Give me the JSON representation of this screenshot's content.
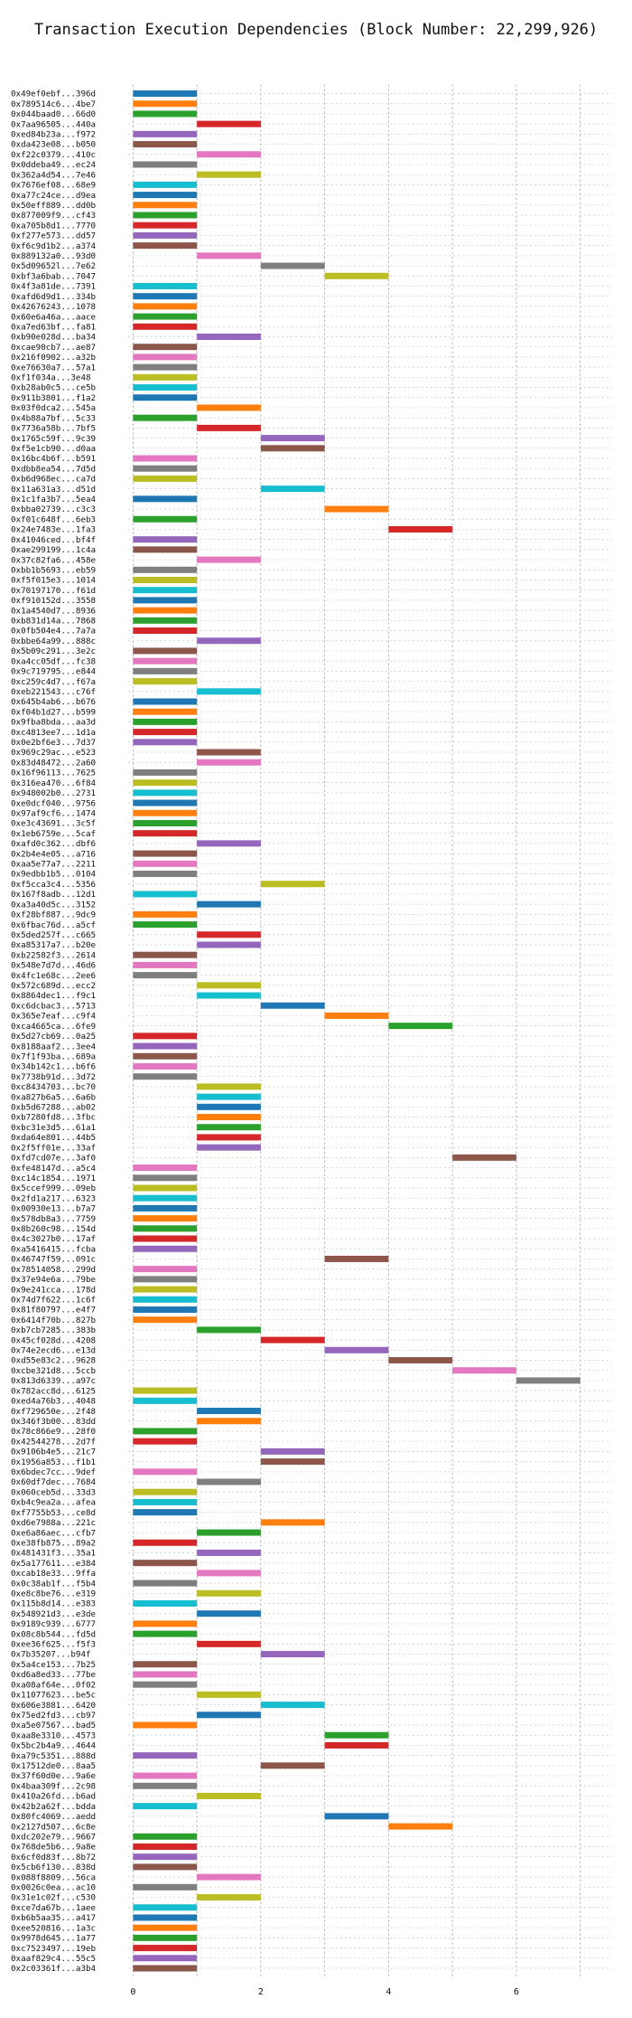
{
  "chart_data": {
    "type": "bar",
    "orientation": "horizontal",
    "title": "Transaction Execution Dependencies (Block Number: 22,299,926)",
    "xlabel": "",
    "ylabel": "",
    "xlim": [
      -0.5,
      7.5
    ],
    "xticks": [
      0,
      2,
      4,
      6
    ],
    "grid": true,
    "palette": [
      "#1f77b4",
      "#ff7f0e",
      "#2ca02c",
      "#d62728",
      "#9467bd",
      "#8c564b",
      "#e377c2",
      "#7f7f7f",
      "#bcbd22",
      "#17becf"
    ],
    "transactions": [
      {
        "label": "0x49ef0ebf...396d",
        "start": 0,
        "end": 1
      },
      {
        "label": "0x789514c6...4be7",
        "start": 0,
        "end": 1
      },
      {
        "label": "0x044baad0...66d0",
        "start": 0,
        "end": 1
      },
      {
        "label": "0x7aa96505...440a",
        "start": 1,
        "end": 2
      },
      {
        "label": "0xed84b23a...f972",
        "start": 0,
        "end": 1
      },
      {
        "label": "0xda423e08...b050",
        "start": 0,
        "end": 1
      },
      {
        "label": "0xf22c0379...410c",
        "start": 1,
        "end": 2
      },
      {
        "label": "0x0ddeba49...ec24",
        "start": 0,
        "end": 1
      },
      {
        "label": "0x362a4d54...7e46",
        "start": 1,
        "end": 2
      },
      {
        "label": "0x7676ef08...68e9",
        "start": 0,
        "end": 1
      },
      {
        "label": "0xa77c24ce...d9ea",
        "start": 0,
        "end": 1
      },
      {
        "label": "0x50eff889...dd0b",
        "start": 0,
        "end": 1
      },
      {
        "label": "0x877009f9...cf43",
        "start": 0,
        "end": 1
      },
      {
        "label": "0xa705b8d1...7770",
        "start": 0,
        "end": 1
      },
      {
        "label": "0xf277e573...dd57",
        "start": 0,
        "end": 1
      },
      {
        "label": "0xf6c9d1b2...a374",
        "start": 0,
        "end": 1
      },
      {
        "label": "0x889132a0...93d0",
        "start": 1,
        "end": 2
      },
      {
        "label": "0x5d09652l...7e62",
        "start": 2,
        "end": 3
      },
      {
        "label": "0xbf3a6bab...7047",
        "start": 3,
        "end": 4
      },
      {
        "label": "0x4f3a81de...7391",
        "start": 0,
        "end": 1
      },
      {
        "label": "0xafd6d9d1...334b",
        "start": 0,
        "end": 1
      },
      {
        "label": "0x42676243...1078",
        "start": 0,
        "end": 1
      },
      {
        "label": "0x60e6a46a...aace",
        "start": 0,
        "end": 1
      },
      {
        "label": "0xa7ed63bf...fa81",
        "start": 0,
        "end": 1
      },
      {
        "label": "0xb90e028d...ba34",
        "start": 1,
        "end": 2
      },
      {
        "label": "0xcae90cb7...ae87",
        "start": 0,
        "end": 1
      },
      {
        "label": "0x216f0902...a32b",
        "start": 0,
        "end": 1
      },
      {
        "label": "0xe76630a7...57a1",
        "start": 0,
        "end": 1
      },
      {
        "label": "0xf1f034a...3e48",
        "start": 0,
        "end": 1
      },
      {
        "label": "0xb28ab0c5...ce5b",
        "start": 0,
        "end": 1
      },
      {
        "label": "0x911b3801...f1a2",
        "start": 0,
        "end": 1
      },
      {
        "label": "0x03f0dca2...545a",
        "start": 1,
        "end": 2
      },
      {
        "label": "0x4b88a7bf...5c33",
        "start": 0,
        "end": 1
      },
      {
        "label": "0x7736a58b...7bf5",
        "start": 1,
        "end": 2
      },
      {
        "label": "0x1765c59f...9c39",
        "start": 2,
        "end": 3
      },
      {
        "label": "0xf5e1cb90...d0aa",
        "start": 2,
        "end": 3
      },
      {
        "label": "0x16bc4b6f...b591",
        "start": 0,
        "end": 1
      },
      {
        "label": "0xdbb8ea54...7d5d",
        "start": 0,
        "end": 1
      },
      {
        "label": "0xb6d968ec...ca7d",
        "start": 0,
        "end": 1
      },
      {
        "label": "0x11a631a3...d51d",
        "start": 2,
        "end": 3
      },
      {
        "label": "0x1c1fa3b7...5ea4",
        "start": 0,
        "end": 1
      },
      {
        "label": "0xbba02739...c3c3",
        "start": 3,
        "end": 4
      },
      {
        "label": "0xf01c648f...6eb3",
        "start": 0,
        "end": 1
      },
      {
        "label": "0x24e7483e...1fa3",
        "start": 4,
        "end": 5
      },
      {
        "label": "0x41046ced...bf4f",
        "start": 0,
        "end": 1
      },
      {
        "label": "0xae299199...1c4a",
        "start": 0,
        "end": 1
      },
      {
        "label": "0x37c82fa6...458e",
        "start": 1,
        "end": 2
      },
      {
        "label": "0xbb1b5693...eb59",
        "start": 0,
        "end": 1
      },
      {
        "label": "0xf5f015e3...1014",
        "start": 0,
        "end": 1
      },
      {
        "label": "0x70197170...f61d",
        "start": 0,
        "end": 1
      },
      {
        "label": "0xf910152d...3558",
        "start": 0,
        "end": 1
      },
      {
        "label": "0x1a4540d7...8936",
        "start": 0,
        "end": 1
      },
      {
        "label": "0xb831d14a...7868",
        "start": 0,
        "end": 1
      },
      {
        "label": "0x0fb504e4...7a7a",
        "start": 0,
        "end": 1
      },
      {
        "label": "0xbbe64a99...888c",
        "start": 1,
        "end": 2
      },
      {
        "label": "0x5b09c291...3e2c",
        "start": 0,
        "end": 1
      },
      {
        "label": "0xa4cc05df...fc38",
        "start": 0,
        "end": 1
      },
      {
        "label": "0x9c719795...e844",
        "start": 0,
        "end": 1
      },
      {
        "label": "0xc259c4d7...f67a",
        "start": 0,
        "end": 1
      },
      {
        "label": "0xeb221543...c76f",
        "start": 1,
        "end": 2
      },
      {
        "label": "0x645b4ab6...b676",
        "start": 0,
        "end": 1
      },
      {
        "label": "0xf04b1d27...b599",
        "start": 0,
        "end": 1
      },
      {
        "label": "0x9fba8bda...aa3d",
        "start": 0,
        "end": 1
      },
      {
        "label": "0xc4813ee7...1d1a",
        "start": 0,
        "end": 1
      },
      {
        "label": "0x0e2bf6e3...7d37",
        "start": 0,
        "end": 1
      },
      {
        "label": "0x969c29ac...e523",
        "start": 1,
        "end": 2
      },
      {
        "label": "0x83d48472...2a60",
        "start": 1,
        "end": 2
      },
      {
        "label": "0x16f96113...7625",
        "start": 0,
        "end": 1
      },
      {
        "label": "0x316ea470...6f84",
        "start": 0,
        "end": 1
      },
      {
        "label": "0x948002b0...2731",
        "start": 0,
        "end": 1
      },
      {
        "label": "0xe0dcf040...9756",
        "start": 0,
        "end": 1
      },
      {
        "label": "0x97af9cf6...1474",
        "start": 0,
        "end": 1
      },
      {
        "label": "0xe3c43691...3c5f",
        "start": 0,
        "end": 1
      },
      {
        "label": "0x1eb6759e...5caf",
        "start": 0,
        "end": 1
      },
      {
        "label": "0xafd0c362...dbf6",
        "start": 1,
        "end": 2
      },
      {
        "label": "0x2b4e4e05...a716",
        "start": 0,
        "end": 1
      },
      {
        "label": "0xaa5e77a7...2211",
        "start": 0,
        "end": 1
      },
      {
        "label": "0x9edbb1b5...0104",
        "start": 0,
        "end": 1
      },
      {
        "label": "0xf5cca3c4...5356",
        "start": 2,
        "end": 3
      },
      {
        "label": "0x167f8adb...12d1",
        "start": 0,
        "end": 1
      },
      {
        "label": "0xa3a40d5c...3152",
        "start": 1,
        "end": 2
      },
      {
        "label": "0xf28bf887...9dc9",
        "start": 0,
        "end": 1
      },
      {
        "label": "0x6fbac76d...a5cf",
        "start": 0,
        "end": 1
      },
      {
        "label": "0x5ded257f...c665",
        "start": 1,
        "end": 2
      },
      {
        "label": "0xa85317a7...b20e",
        "start": 1,
        "end": 2
      },
      {
        "label": "0xb22582f3...2614",
        "start": 0,
        "end": 1
      },
      {
        "label": "0x548e7d7d...46d6",
        "start": 0,
        "end": 1
      },
      {
        "label": "0x4fc1e68c...2ee6",
        "start": 0,
        "end": 1
      },
      {
        "label": "0x572c689d...ecc2",
        "start": 1,
        "end": 2
      },
      {
        "label": "0x8864dec1...f9c1",
        "start": 1,
        "end": 2
      },
      {
        "label": "0xc6dcbac3...5713",
        "start": 2,
        "end": 3
      },
      {
        "label": "0x365e7eaf...c9f4",
        "start": 3,
        "end": 4
      },
      {
        "label": "0xca4665ca...6fe9",
        "start": 4,
        "end": 5
      },
      {
        "label": "0x5d27cb69...0a25",
        "start": 0,
        "end": 1
      },
      {
        "label": "0x8188aaf2...3ee4",
        "start": 0,
        "end": 1
      },
      {
        "label": "0x7f1f93ba...689a",
        "start": 0,
        "end": 1
      },
      {
        "label": "0x34b142c1...b6f6",
        "start": 0,
        "end": 1
      },
      {
        "label": "0x7738b91d...3d72",
        "start": 0,
        "end": 1
      },
      {
        "label": "0xc8434703...bc70",
        "start": 1,
        "end": 2
      },
      {
        "label": "0xa827b6a5...6a6b",
        "start": 1,
        "end": 2
      },
      {
        "label": "0xb5d67288...ab02",
        "start": 1,
        "end": 2
      },
      {
        "label": "0xb7280fd8...3fbc",
        "start": 1,
        "end": 2
      },
      {
        "label": "0xbc31e3d5...61a1",
        "start": 1,
        "end": 2
      },
      {
        "label": "0xda64e801...44b5",
        "start": 1,
        "end": 2
      },
      {
        "label": "0x2f5ff01e...33af",
        "start": 1,
        "end": 2
      },
      {
        "label": "0xfd7cd07e...3af0",
        "start": 5,
        "end": 6
      },
      {
        "label": "0xfe48147d...a5c4",
        "start": 0,
        "end": 1
      },
      {
        "label": "0xc14c1854...1971",
        "start": 0,
        "end": 1
      },
      {
        "label": "0x5ccef999...09eb",
        "start": 0,
        "end": 1
      },
      {
        "label": "0x2fd1a217...6323",
        "start": 0,
        "end": 1
      },
      {
        "label": "0x00930e13...b7a7",
        "start": 0,
        "end": 1
      },
      {
        "label": "0x578db8a3...7759",
        "start": 0,
        "end": 1
      },
      {
        "label": "0x8b260c98...154d",
        "start": 0,
        "end": 1
      },
      {
        "label": "0x4c3027b0...17af",
        "start": 0,
        "end": 1
      },
      {
        "label": "0xa5416415...fcba",
        "start": 0,
        "end": 1
      },
      {
        "label": "0x46747f59...091c",
        "start": 3,
        "end": 4
      },
      {
        "label": "0x78514058...299d",
        "start": 0,
        "end": 1
      },
      {
        "label": "0x37e94e6a...79be",
        "start": 0,
        "end": 1
      },
      {
        "label": "0x9e241cca...178d",
        "start": 0,
        "end": 1
      },
      {
        "label": "0x74d7f622...1c6f",
        "start": 0,
        "end": 1
      },
      {
        "label": "0x81f80797...e4f7",
        "start": 0,
        "end": 1
      },
      {
        "label": "0x6414f70b...827b",
        "start": 0,
        "end": 1
      },
      {
        "label": "0xb7cb7285...383b",
        "start": 1,
        "end": 2
      },
      {
        "label": "0x45cf028d...4208",
        "start": 2,
        "end": 3
      },
      {
        "label": "0x74e2ecd6...e13d",
        "start": 3,
        "end": 4
      },
      {
        "label": "0xd55e83c2...9628",
        "start": 4,
        "end": 5
      },
      {
        "label": "0xcbe321d8...5ccb",
        "start": 5,
        "end": 6
      },
      {
        "label": "0x813d6339...a97c",
        "start": 6,
        "end": 7
      },
      {
        "label": "0x782acc8d...6125",
        "start": 0,
        "end": 1
      },
      {
        "label": "0xed4a76b3...4048",
        "start": 0,
        "end": 1
      },
      {
        "label": "0xf729650e...2f48",
        "start": 1,
        "end": 2
      },
      {
        "label": "0x346f3b00...83dd",
        "start": 1,
        "end": 2
      },
      {
        "label": "0x78c866e9...28f0",
        "start": 0,
        "end": 1
      },
      {
        "label": "0x42544278...2d7f",
        "start": 0,
        "end": 1
      },
      {
        "label": "0x9106b4e5...21c7",
        "start": 2,
        "end": 3
      },
      {
        "label": "0x1956a853...f1b1",
        "start": 2,
        "end": 3
      },
      {
        "label": "0x6bdec7cc...9def",
        "start": 0,
        "end": 1
      },
      {
        "label": "0x60df7dec...7684",
        "start": 1,
        "end": 2
      },
      {
        "label": "0x060ceb5d...33d3",
        "start": 0,
        "end": 1
      },
      {
        "label": "0xb4c9ea2a...afea",
        "start": 0,
        "end": 1
      },
      {
        "label": "0xf7755b53...ce8d",
        "start": 0,
        "end": 1
      },
      {
        "label": "0xd6e7988a...221c",
        "start": 2,
        "end": 3
      },
      {
        "label": "0xe6a86aec...cfb7",
        "start": 1,
        "end": 2
      },
      {
        "label": "0xe38fb875...89a2",
        "start": 0,
        "end": 1
      },
      {
        "label": "0x481431f3...35a1",
        "start": 1,
        "end": 2
      },
      {
        "label": "0x5a177611...e384",
        "start": 0,
        "end": 1
      },
      {
        "label": "0xcab18e33...9ffa",
        "start": 1,
        "end": 2
      },
      {
        "label": "0x0c38ab1f...f5b4",
        "start": 0,
        "end": 1
      },
      {
        "label": "0xe8c8be76...e319",
        "start": 1,
        "end": 2
      },
      {
        "label": "0x115b8d14...e383",
        "start": 0,
        "end": 1
      },
      {
        "label": "0x548921d3...e3de",
        "start": 1,
        "end": 2
      },
      {
        "label": "0x9189c939...6777",
        "start": 0,
        "end": 1
      },
      {
        "label": "0x08c8b544...fd5d",
        "start": 0,
        "end": 1
      },
      {
        "label": "0xee36f625...f5f3",
        "start": 1,
        "end": 2
      },
      {
        "label": "0x7b35207...b94f",
        "start": 2,
        "end": 3
      },
      {
        "label": "0x5a4ce153...7b25",
        "start": 0,
        "end": 1
      },
      {
        "label": "0xd6a8ed33...77be",
        "start": 0,
        "end": 1
      },
      {
        "label": "0xa08af64e...0f02",
        "start": 0,
        "end": 1
      },
      {
        "label": "0x11077623...be5c",
        "start": 1,
        "end": 2
      },
      {
        "label": "0x606e3881...6420",
        "start": 2,
        "end": 3
      },
      {
        "label": "0x75ed2fd3...cb97",
        "start": 1,
        "end": 2
      },
      {
        "label": "0xa5e07567...bad5",
        "start": 0,
        "end": 1
      },
      {
        "label": "0xaa8e3310...4573",
        "start": 3,
        "end": 4
      },
      {
        "label": "0x5bc2b4a9...4644",
        "start": 3,
        "end": 4
      },
      {
        "label": "0xa79c5351...888d",
        "start": 0,
        "end": 1
      },
      {
        "label": "0x17512de0...8aa5",
        "start": 2,
        "end": 3
      },
      {
        "label": "0x37f60d0e...9a6e",
        "start": 0,
        "end": 1
      },
      {
        "label": "0x4baa309f...2c98",
        "start": 0,
        "end": 1
      },
      {
        "label": "0x410a26fd...b6ad",
        "start": 1,
        "end": 2
      },
      {
        "label": "0x42b2a62f...bdda",
        "start": 0,
        "end": 1
      },
      {
        "label": "0x80fc4069...aedd",
        "start": 3,
        "end": 4
      },
      {
        "label": "0x2127d507...6c8e",
        "start": 4,
        "end": 5
      },
      {
        "label": "0xdc202e79...9667",
        "start": 0,
        "end": 1
      },
      {
        "label": "0x768de5b6...9a8e",
        "start": 0,
        "end": 1
      },
      {
        "label": "0x6cf0d83f...8b72",
        "start": 0,
        "end": 1
      },
      {
        "label": "0x5cb6f130...838d",
        "start": 0,
        "end": 1
      },
      {
        "label": "0x088f8809...56ca",
        "start": 1,
        "end": 2
      },
      {
        "label": "0x0026c0ea...ac10",
        "start": 0,
        "end": 1
      },
      {
        "label": "0x31e1c02f...c530",
        "start": 1,
        "end": 2
      },
      {
        "label": "0xce7da67b...1aee",
        "start": 0,
        "end": 1
      },
      {
        "label": "0xb6b5aa35...a417",
        "start": 0,
        "end": 1
      },
      {
        "label": "0xee520816...1a3c",
        "start": 0,
        "end": 1
      },
      {
        "label": "0x9978d645...1a77",
        "start": 0,
        "end": 1
      },
      {
        "label": "0xc7523497...19eb",
        "start": 0,
        "end": 1
      },
      {
        "label": "0xaaf829c4...55c5",
        "start": 0,
        "end": 1
      },
      {
        "label": "0x2c03361f...a3b4",
        "start": 0,
        "end": 1
      }
    ]
  }
}
